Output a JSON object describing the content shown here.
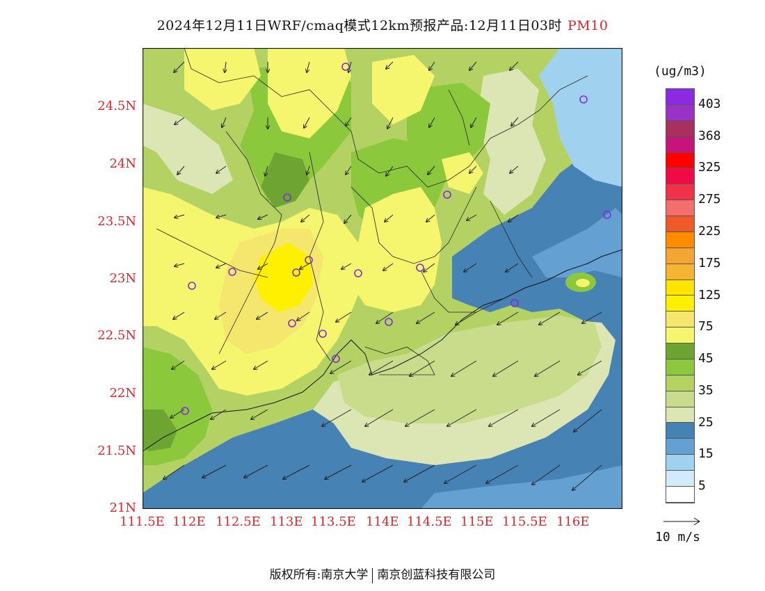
{
  "title": {
    "text": "2024年12月11日WRF/cmaq模式12km预报产品:12月11日03时",
    "pollutant": "PM10",
    "pollutant_color": "#e0242b"
  },
  "axes": {
    "y_ticks": [
      "24.5N",
      "24N",
      "23.5N",
      "23N",
      "22.5N",
      "22N",
      "21.5N",
      "21N"
    ],
    "x_ticks": [
      "111.5E",
      "112E",
      "112.5E",
      "113E",
      "113.5E",
      "114E",
      "114.5E",
      "115E",
      "115.5E",
      "116E"
    ],
    "label_color": "#e0242b"
  },
  "legend": {
    "unit": "(ug/m3)",
    "colors": [
      "#8a2be2",
      "#9b32c8",
      "#a8305f",
      "#c8147a",
      "#ff0000",
      "#f00a46",
      "#f0324b",
      "#f56e6e",
      "#f05a28",
      "#ff8c00",
      "#f5a532",
      "#f5b432",
      "#ffe400",
      "#fff000",
      "#f5e66e",
      "#f5f56e",
      "#6ea532",
      "#8cc83c",
      "#b4d264",
      "#c8dc8c",
      "#dce6b4",
      "#4682b4",
      "#64a0d2",
      "#a0d2f0",
      "#d2ebfa",
      "#ffffff"
    ],
    "labels": [
      "403",
      "368",
      "325",
      "275",
      "225",
      "175",
      "125",
      "75",
      "45",
      "35",
      "25",
      "15",
      "5"
    ]
  },
  "wind_reference": {
    "label": "10 m/s"
  },
  "footer": {
    "left": "版权所有:南京大学",
    "right": "南京创蓝科技有限公司"
  }
}
